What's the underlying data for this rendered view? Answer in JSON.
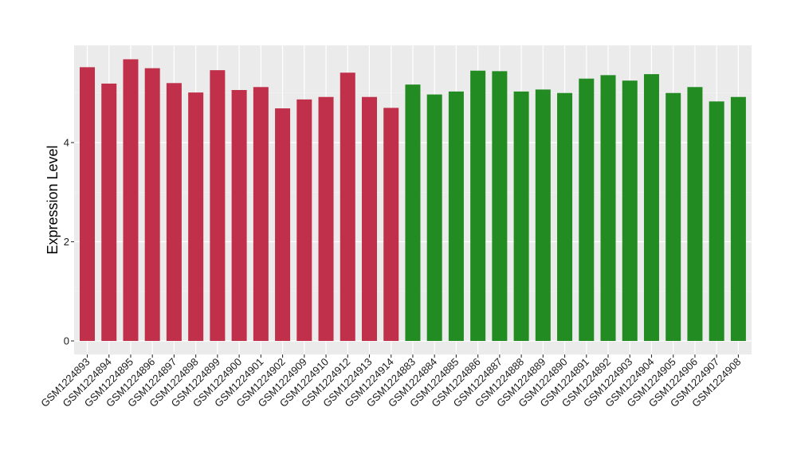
{
  "chart_data": {
    "type": "bar",
    "title": "",
    "xlabel": "",
    "ylabel": "Expression Level",
    "ylim": [
      -0.25,
      5.95
    ],
    "yticks": [
      0,
      2,
      4
    ],
    "grid": true,
    "background": "#EBEBEB",
    "categories": [
      "GSM1224893",
      "GSM1224894",
      "GSM1224895",
      "GSM1224896",
      "GSM1224897",
      "GSM1224898",
      "GSM1224899",
      "GSM1224900",
      "GSM1224901",
      "GSM1224902",
      "GSM1224909",
      "GSM1224910",
      "GSM1224912",
      "GSM1224913",
      "GSM1224914",
      "GSM1224883",
      "GSM1224884",
      "GSM1224885",
      "GSM1224886",
      "GSM1224887",
      "GSM1224888",
      "GSM1224889",
      "GSM1224890",
      "GSM1224891",
      "GSM1224892",
      "GSM1224903",
      "GSM1224904",
      "GSM1224905",
      "GSM1224906",
      "GSM1224907",
      "GSM1224908"
    ],
    "values": [
      5.52,
      5.19,
      5.68,
      5.5,
      5.2,
      5.01,
      5.46,
      5.06,
      5.12,
      4.69,
      4.87,
      4.92,
      5.41,
      4.92,
      4.7,
      5.17,
      4.97,
      5.03,
      5.45,
      5.44,
      5.03,
      5.07,
      5.0,
      5.29,
      5.36,
      5.25,
      5.38,
      5.0,
      5.12,
      4.83,
      4.92
    ],
    "groups": [
      {
        "color": "#C0304A",
        "count": 15
      },
      {
        "color": "#228B22",
        "count": 16
      }
    ]
  }
}
